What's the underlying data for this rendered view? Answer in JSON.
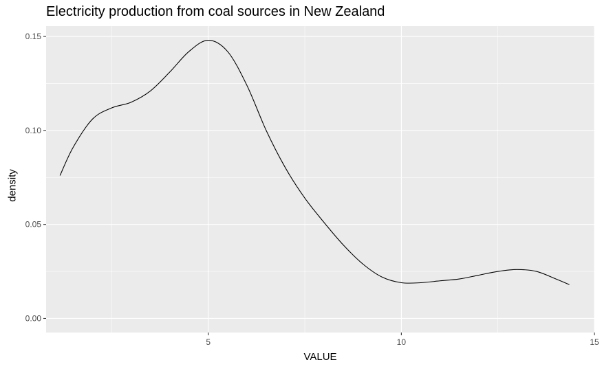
{
  "chart_data": {
    "type": "line",
    "title": "Electricity production from coal sources in New Zealand",
    "xlabel": "VALUE",
    "ylabel": "density",
    "xlim": [
      0.8,
      15.0
    ],
    "ylim": [
      -0.0075,
      0.1555
    ],
    "x_ticks": [
      5,
      10,
      15
    ],
    "y_ticks": [
      0.0,
      0.05,
      0.1,
      0.15
    ],
    "x_tick_labels": [
      "5",
      "10",
      "15"
    ],
    "y_tick_labels": [
      "0.00",
      "0.05",
      "0.10",
      "0.15"
    ],
    "grid": true,
    "series": [
      {
        "x": [
          1.16,
          1.5,
          2.0,
          2.5,
          3.0,
          3.5,
          4.0,
          4.5,
          5.0,
          5.5,
          6.0,
          6.5,
          7.0,
          7.5,
          8.0,
          8.5,
          9.0,
          9.5,
          10.0,
          10.5,
          11.0,
          11.5,
          12.0,
          12.5,
          13.0,
          13.5,
          14.0,
          14.35
        ],
        "y": [
          0.076,
          0.091,
          0.106,
          0.112,
          0.115,
          0.121,
          0.131,
          0.142,
          0.148,
          0.142,
          0.124,
          0.1,
          0.08,
          0.064,
          0.051,
          0.039,
          0.029,
          0.022,
          0.019,
          0.019,
          0.02,
          0.021,
          0.023,
          0.025,
          0.026,
          0.025,
          0.021,
          0.018
        ]
      }
    ],
    "colors": {
      "panel": "#ebebeb",
      "grid_major": "#ffffff",
      "line": "#000000",
      "tick_text": "#4d4d4d"
    }
  }
}
